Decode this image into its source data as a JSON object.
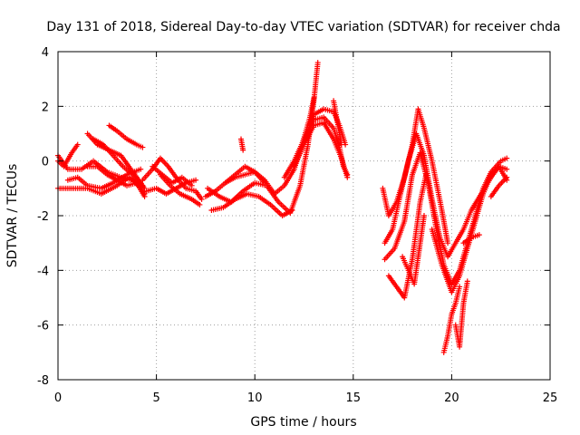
{
  "chart_data": {
    "type": "scatter",
    "title": "Day 131 of 2018, Sidereal Day-to-day VTEC variation (SDTVAR) for receiver chda",
    "xlabel": "GPS time / hours",
    "ylabel": "SDTVAR / TECUs",
    "xlim": [
      0,
      25
    ],
    "ylim": [
      -8,
      4
    ],
    "xticks": [
      0,
      5,
      10,
      15,
      20,
      25
    ],
    "yticks": [
      -8,
      -6,
      -4,
      -2,
      0,
      2,
      4
    ],
    "grid": true,
    "marker": "+",
    "color": "#ff0000",
    "traces": [
      {
        "x": [
          0.0,
          0.3,
          0.7,
          1.0
        ],
        "y": [
          0.0,
          -0.2,
          0.3,
          0.6
        ]
      },
      {
        "x": [
          0.0,
          0.5,
          1.2,
          1.8,
          2.5,
          3.2,
          3.8,
          4.2,
          4.4
        ],
        "y": [
          0.2,
          -0.3,
          -0.3,
          0.0,
          -0.4,
          -0.6,
          -0.7,
          -1.0,
          -1.2
        ]
      },
      {
        "x": [
          0.0,
          0.8,
          1.5,
          2.2,
          3.0,
          3.6,
          4.0,
          4.4
        ],
        "y": [
          -1.0,
          -1.0,
          -1.0,
          -1.2,
          -0.9,
          -0.6,
          -0.8,
          -1.3
        ]
      },
      {
        "x": [
          0.5,
          1.0,
          1.5,
          2.2,
          2.8,
          3.5,
          4.2
        ],
        "y": [
          -0.7,
          -0.6,
          -0.9,
          -1.0,
          -0.8,
          -0.5,
          -0.3
        ]
      },
      {
        "x": [
          1.5,
          2.0,
          2.5,
          3.0,
          3.5,
          4.0,
          4.3
        ],
        "y": [
          -0.2,
          -0.2,
          -0.5,
          -0.7,
          -0.9,
          -0.8,
          -0.9
        ]
      },
      {
        "x": [
          1.5,
          2.0,
          2.6,
          3.2,
          3.6,
          4.0,
          4.4
        ],
        "y": [
          1.0,
          0.6,
          0.4,
          0.2,
          -0.2,
          -0.6,
          -1.0
        ]
      },
      {
        "x": [
          1.8,
          2.3,
          2.8,
          3.3,
          3.8,
          4.2
        ],
        "y": [
          0.8,
          0.6,
          0.2,
          -0.2,
          -0.5,
          -0.8
        ]
      },
      {
        "x": [
          2.6,
          3.0,
          3.5,
          4.0,
          4.3
        ],
        "y": [
          1.3,
          1.1,
          0.8,
          0.6,
          0.5
        ]
      },
      {
        "x": [
          4.3,
          4.8,
          5.2,
          5.6,
          6.0,
          6.5,
          7.0,
          7.3
        ],
        "y": [
          -0.7,
          -0.3,
          0.1,
          -0.2,
          -0.6,
          -1.0,
          -1.1,
          -1.4
        ]
      },
      {
        "x": [
          4.5,
          5.0,
          5.5,
          6.0,
          6.5,
          7.0
        ],
        "y": [
          -1.1,
          -1.0,
          -1.2,
          -1.0,
          -0.8,
          -0.7
        ]
      },
      {
        "x": [
          4.8,
          5.3,
          5.8,
          6.3,
          6.8
        ],
        "y": [
          -0.2,
          -0.5,
          -0.8,
          -0.6,
          -0.9
        ]
      },
      {
        "x": [
          5.2,
          5.7,
          6.2,
          6.8,
          7.2
        ],
        "y": [
          -0.5,
          -0.9,
          -1.2,
          -1.4,
          -1.6
        ]
      },
      {
        "x": [
          7.5,
          8.0,
          8.5,
          9.0,
          9.5,
          10.0,
          10.5,
          11.0,
          11.5,
          12.0,
          12.4,
          12.8,
          13.0
        ],
        "y": [
          -1.3,
          -1.1,
          -0.8,
          -0.6,
          -0.5,
          -0.4,
          -0.7,
          -1.2,
          -0.9,
          -0.3,
          0.6,
          1.6,
          2.3
        ]
      },
      {
        "x": [
          7.6,
          8.2,
          8.8,
          9.4,
          10.0,
          10.6,
          11.2,
          11.8,
          12.3,
          12.7,
          13.0,
          13.2
        ],
        "y": [
          -1.0,
          -1.3,
          -1.5,
          -1.1,
          -0.8,
          -0.9,
          -1.5,
          -1.9,
          -0.9,
          0.6,
          2.2,
          3.6
        ]
      },
      {
        "x": [
          7.8,
          8.4,
          9.0,
          9.6,
          10.2,
          10.8,
          11.4,
          11.9
        ],
        "y": [
          -1.8,
          -1.7,
          -1.4,
          -1.2,
          -1.3,
          -1.6,
          -2.0,
          -1.8
        ]
      },
      {
        "x": [
          8.5,
          9.0,
          9.5,
          10.0,
          10.5
        ],
        "y": [
          -0.8,
          -0.5,
          -0.2,
          -0.4,
          -0.8
        ]
      },
      {
        "x": [
          9.3,
          9.4
        ],
        "y": [
          0.8,
          0.4
        ]
      },
      {
        "x": [
          11.5,
          12.0,
          12.5,
          13.0,
          13.5,
          14.0,
          14.3,
          14.5,
          14.7
        ],
        "y": [
          -0.6,
          0.0,
          0.8,
          1.5,
          1.6,
          1.2,
          0.5,
          -0.2,
          -0.5
        ]
      },
      {
        "x": [
          12.0,
          12.5,
          13.0,
          13.5,
          14.0,
          14.4,
          14.7
        ],
        "y": [
          -0.2,
          0.6,
          1.3,
          1.4,
          0.8,
          0.1,
          -0.6
        ]
      },
      {
        "x": [
          12.6,
          13.0,
          13.5,
          14.0,
          14.3,
          14.6
        ],
        "y": [
          0.9,
          1.7,
          1.9,
          1.8,
          1.3,
          0.6
        ]
      },
      {
        "x": [
          14.0,
          14.2,
          14.4
        ],
        "y": [
          2.2,
          1.4,
          0.6
        ]
      },
      {
        "x": [
          16.5,
          16.8,
          17.2,
          17.6,
          18.0,
          18.3,
          18.6,
          19.0,
          19.5,
          19.8
        ],
        "y": [
          -1.0,
          -2.0,
          -1.5,
          -0.6,
          0.6,
          1.9,
          1.2,
          0.0,
          -1.8,
          -3.0
        ]
      },
      {
        "x": [
          16.6,
          17.0,
          17.4,
          17.8,
          18.2,
          18.6,
          19.0,
          19.4,
          19.8,
          20.2,
          20.6,
          21.0,
          21.5,
          22.0,
          22.4,
          22.8
        ],
        "y": [
          -3.0,
          -2.5,
          -1.2,
          0.0,
          1.0,
          0.2,
          -1.4,
          -2.8,
          -3.5,
          -3.0,
          -2.5,
          -1.8,
          -1.2,
          -0.6,
          -0.2,
          -0.3
        ]
      },
      {
        "x": [
          16.6,
          17.1,
          17.6,
          18.0,
          18.4,
          18.8,
          19.2,
          19.6,
          20.0,
          20.4,
          20.8,
          21.2,
          21.6,
          22.0,
          22.5,
          22.8
        ],
        "y": [
          -3.6,
          -3.2,
          -2.2,
          -0.5,
          0.3,
          -0.8,
          -2.4,
          -3.8,
          -4.5,
          -4.0,
          -3.0,
          -2.0,
          -1.0,
          -0.4,
          0.0,
          0.1
        ]
      },
      {
        "x": [
          16.8,
          17.2,
          17.6,
          18.0,
          18.4,
          18.7
        ],
        "y": [
          -4.2,
          -4.6,
          -5.0,
          -3.6,
          -1.5,
          -0.5
        ]
      },
      {
        "x": [
          17.5,
          17.8,
          18.1,
          18.4,
          18.6
        ],
        "y": [
          -3.5,
          -4.0,
          -4.5,
          -3.0,
          -2.0
        ]
      },
      {
        "x": [
          19.0,
          19.5,
          20.0,
          20.4,
          20.8,
          21.2,
          21.6,
          22.0,
          22.4,
          22.8
        ],
        "y": [
          -2.5,
          -3.8,
          -4.8,
          -4.2,
          -3.2,
          -2.2,
          -1.2,
          -0.5,
          -0.2,
          -0.7
        ]
      },
      {
        "x": [
          19.6,
          19.8,
          20.0,
          20.2,
          20.4
        ],
        "y": [
          -7.0,
          -6.4,
          -5.6,
          -5.2,
          -4.6
        ]
      },
      {
        "x": [
          20.2,
          20.4,
          20.6,
          20.8
        ],
        "y": [
          -6.0,
          -6.8,
          -5.2,
          -4.4
        ]
      },
      {
        "x": [
          20.6,
          21.0,
          21.4
        ],
        "y": [
          -3.0,
          -2.8,
          -2.7
        ]
      },
      {
        "x": [
          22.0,
          22.4,
          22.8
        ],
        "y": [
          -1.3,
          -0.9,
          -0.6
        ]
      }
    ]
  }
}
